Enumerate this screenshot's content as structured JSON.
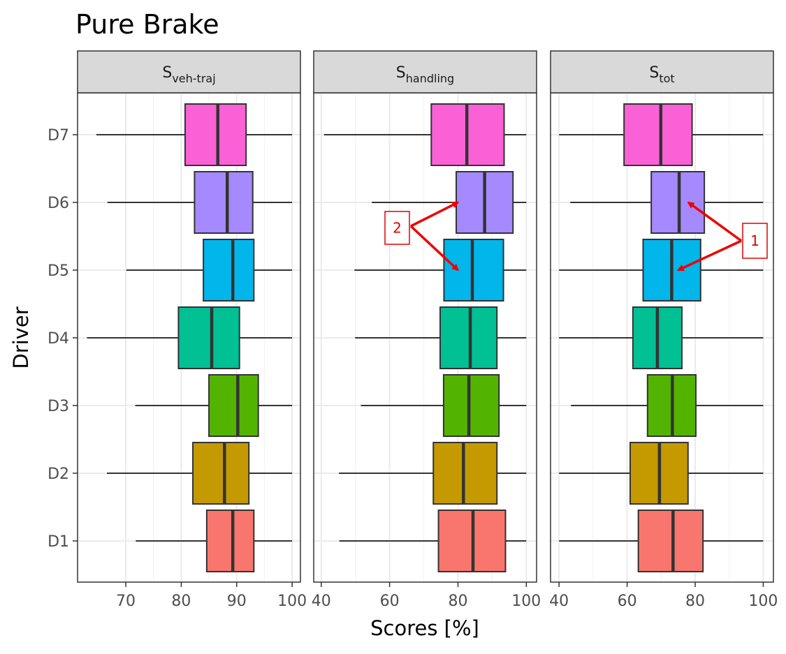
{
  "chart_data": {
    "type": "boxplot",
    "title": "Pure Brake",
    "xlabel": "Scores [%]",
    "ylabel": "Driver",
    "categories": [
      "D1",
      "D2",
      "D3",
      "D4",
      "D5",
      "D6",
      "D7"
    ],
    "colors": {
      "D1": "#F8766D",
      "D2": "#C49A00",
      "D3": "#53B400",
      "D4": "#00C094",
      "D5": "#00B6EB",
      "D6": "#A58AFF",
      "D7": "#FB61D7"
    },
    "grid": true,
    "panels": [
      {
        "label_main": "S",
        "label_sub": "veh-traj",
        "xlim": [
          61.3,
          101.5
        ],
        "xticks": [
          70,
          80,
          90,
          100
        ],
        "boxes": {
          "D1": {
            "min": 71.8,
            "q1": 84.6,
            "median": 89.3,
            "q3": 93.1,
            "max": 100
          },
          "D2": {
            "min": 66.6,
            "q1": 82.1,
            "median": 87.8,
            "q3": 92.2,
            "max": 100
          },
          "D3": {
            "min": 71.7,
            "q1": 85.0,
            "median": 90.2,
            "q3": 93.9,
            "max": 100
          },
          "D4": {
            "min": 63.0,
            "q1": 79.5,
            "median": 85.5,
            "q3": 90.5,
            "max": 100
          },
          "D5": {
            "min": 70.1,
            "q1": 84.0,
            "median": 89.3,
            "q3": 93.1,
            "max": 100
          },
          "D6": {
            "min": 66.7,
            "q1": 82.4,
            "median": 88.3,
            "q3": 92.9,
            "max": 100
          },
          "D7": {
            "min": 64.7,
            "q1": 80.7,
            "median": 86.6,
            "q3": 91.7,
            "max": 100
          }
        }
      },
      {
        "label_main": "S",
        "label_sub": "handling",
        "xlim": [
          37.8,
          103.0
        ],
        "xticks": [
          40,
          60,
          80,
          100
        ],
        "boxes": {
          "D1": {
            "min": 45.3,
            "q1": 74.3,
            "median": 84.4,
            "q3": 93.9,
            "max": 100
          },
          "D2": {
            "min": 45.2,
            "q1": 72.8,
            "median": 81.6,
            "q3": 91.4,
            "max": 100
          },
          "D3": {
            "min": 51.6,
            "q1": 75.8,
            "median": 83.2,
            "q3": 92.0,
            "max": 100
          },
          "D4": {
            "min": 49.9,
            "q1": 74.8,
            "median": 83.6,
            "q3": 91.4,
            "max": 100
          },
          "D5": {
            "min": 49.7,
            "q1": 75.9,
            "median": 84.2,
            "q3": 93.3,
            "max": 100
          },
          "D6": {
            "min": 54.8,
            "q1": 79.5,
            "median": 87.8,
            "q3": 96.1,
            "max": 100
          },
          "D7": {
            "min": 40.8,
            "q1": 72.2,
            "median": 82.6,
            "q3": 93.5,
            "max": 100
          }
        }
      },
      {
        "label_main": "S",
        "label_sub": "tot",
        "xlim": [
          37.5,
          103.0
        ],
        "xticks": [
          40,
          60,
          80,
          100
        ],
        "boxes": {
          "D1": {
            "min": 40.0,
            "q1": 63.3,
            "median": 73.5,
            "q3": 82.3,
            "max": 100
          },
          "D2": {
            "min": 40.0,
            "q1": 60.9,
            "median": 69.5,
            "q3": 77.9,
            "max": 100
          },
          "D3": {
            "min": 43.5,
            "q1": 66.0,
            "median": 73.3,
            "q3": 80.2,
            "max": 100
          },
          "D4": {
            "min": 40.0,
            "q1": 61.7,
            "median": 68.9,
            "q3": 76.1,
            "max": 100
          },
          "D5": {
            "min": 40.0,
            "q1": 64.7,
            "median": 73.1,
            "q3": 81.6,
            "max": 100
          },
          "D6": {
            "min": 43.3,
            "q1": 67.1,
            "median": 75.3,
            "q3": 82.7,
            "max": 100
          },
          "D7": {
            "min": 40.0,
            "q1": 59.1,
            "median": 69.9,
            "q3": 79.1,
            "max": 100
          }
        }
      }
    ],
    "annotations": [
      {
        "label": "2",
        "panel": 1,
        "targets": [
          {
            "driver": "D6",
            "x": 80
          },
          {
            "driver": "D5",
            "x": 80
          }
        ]
      },
      {
        "label": "1",
        "panel": 2,
        "targets": [
          {
            "driver": "D6",
            "x": 78
          },
          {
            "driver": "D5",
            "x": 75
          }
        ]
      }
    ]
  }
}
